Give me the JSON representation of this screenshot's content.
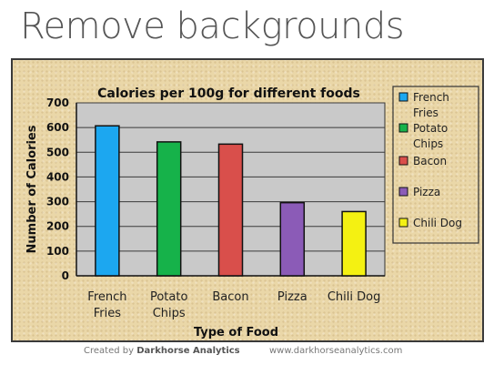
{
  "page": {
    "heading": "Remove backgrounds",
    "footer_created_prefix": "Created by",
    "footer_brand": "Darkhorse Analytics",
    "footer_url": "www.darkhorseanalytics.com"
  },
  "chart_data": {
    "type": "bar",
    "title": "Calories per 100g for different foods",
    "xlabel": "Type of Food",
    "ylabel": "Number of Calories",
    "categories": [
      [
        "French",
        "Fries"
      ],
      [
        "Potato",
        "Chips"
      ],
      [
        "Bacon"
      ],
      [
        "Pizza"
      ],
      [
        "Chili Dog"
      ]
    ],
    "values": [
      607,
      542,
      533,
      296,
      260
    ],
    "colors": [
      "#1ca7f0",
      "#16b24a",
      "#d94f4b",
      "#8b5bb7",
      "#f4f112"
    ],
    "legend": [
      [
        "French",
        "Fries"
      ],
      [
        "Potato",
        "Chips"
      ],
      [
        "Bacon"
      ],
      [
        "Pizza"
      ],
      [
        "Chili Dog"
      ]
    ],
    "legend_placement": "right",
    "ylim": [
      0,
      700
    ],
    "yticks": [
      "0",
      "100",
      "200",
      "300",
      "400",
      "500",
      "600",
      "700"
    ],
    "grid": true,
    "plot_background": "#c9c9c9"
  }
}
